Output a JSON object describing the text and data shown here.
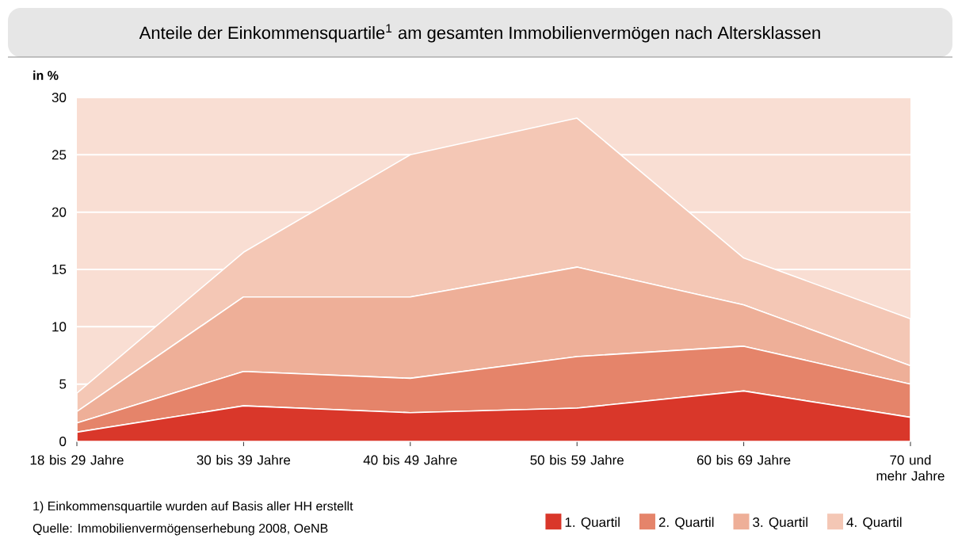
{
  "chart_data": {
    "type": "area",
    "stacked": true,
    "title": "Anteile der Einkommensquartile$^{1}$ am gesamten Immobilienvermögen nach Altersklassen",
    "ylabel": "in %",
    "categories": [
      "18 bis 29 Jahre",
      "30 bis 39 Jahre",
      "40 bis 49 Jahre",
      "50 bis 59 Jahre",
      "60 bis 69 Jahre",
      "70 und mehr Jahre"
    ],
    "series": [
      {
        "name": "1. Quartil",
        "color": "#d9372a",
        "values": [
          0.8,
          3.1,
          2.5,
          2.9,
          4.4,
          2.1
        ]
      },
      {
        "name": "2. Quartil",
        "color": "#e5846a",
        "values": [
          0.8,
          3.0,
          3.0,
          4.5,
          3.9,
          2.9
        ]
      },
      {
        "name": "3. Quartil",
        "color": "#eeaf98",
        "values": [
          1.0,
          6.5,
          7.1,
          7.8,
          3.6,
          1.6
        ]
      },
      {
        "name": "4. Quartil",
        "color": "#f4c7b5",
        "values": [
          1.6,
          3.9,
          12.4,
          13.0,
          4.1,
          4.1
        ]
      }
    ],
    "ylim": [
      0,
      30
    ],
    "yticks": [
      0,
      5,
      10,
      15,
      20,
      25,
      30
    ],
    "grid": "y",
    "legend": "bottom",
    "annotations": [
      "1)  Einkommensquartile wurden auf Basis aller HH erstellt",
      "Quelle: Immobilienvermögenserhebung 2008, OeNB"
    ]
  }
}
